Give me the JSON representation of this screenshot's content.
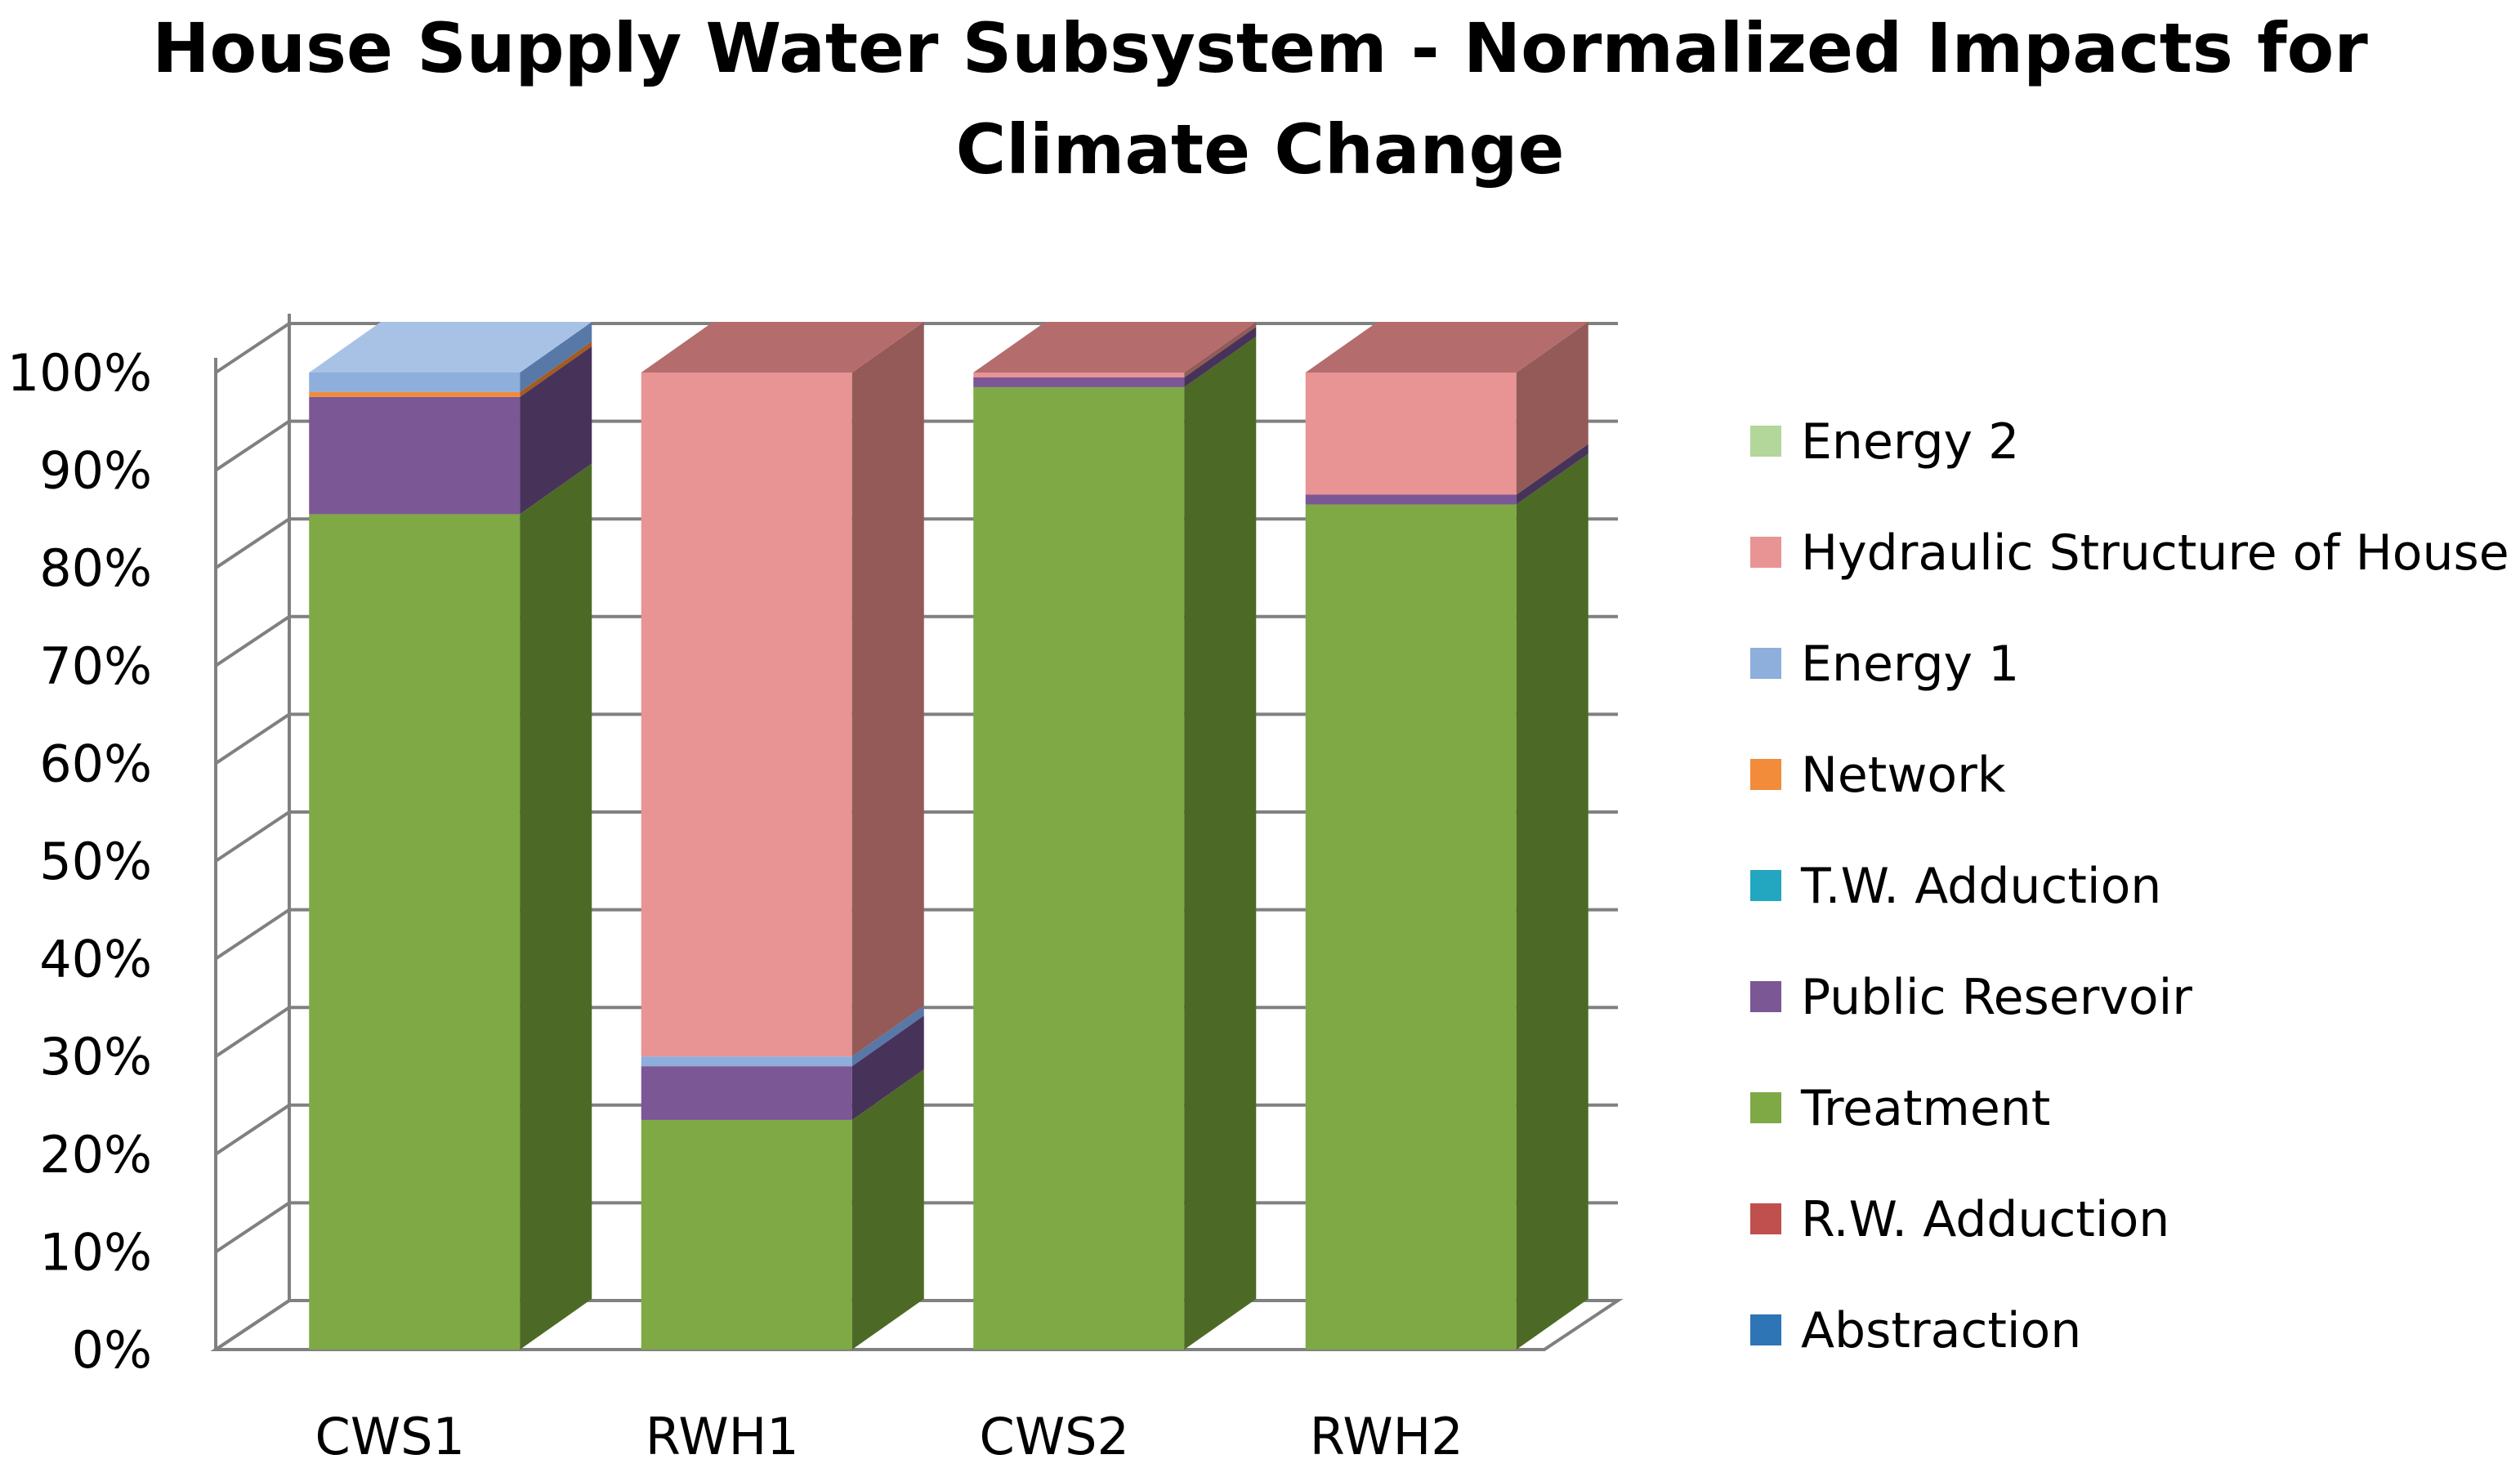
{
  "chart_data": {
    "type": "bar",
    "stacked": true,
    "percent_stacked": true,
    "three_d": true,
    "title": "House Supply Water Subsystem - Normalized Impacts for Climate Change",
    "title_lines": [
      "House Supply Water Subsystem - Normalized Impacts for",
      "Climate Change"
    ],
    "xlabel": "",
    "ylabel": "",
    "ylim": [
      0,
      100
    ],
    "yticks": [
      "0%",
      "10%",
      "20%",
      "30%",
      "40%",
      "50%",
      "60%",
      "70%",
      "80%",
      "90%",
      "100%"
    ],
    "grid": true,
    "legend_position": "right",
    "categories": [
      "CWS1",
      "RWH1",
      "CWS2",
      "RWH2"
    ],
    "series": [
      {
        "name": "Abstraction",
        "color": "#2E75B6",
        "side_color": "#1F4E79",
        "top_color": "#5B9BD5",
        "values": [
          0.0,
          0.0,
          0.0,
          0.0
        ]
      },
      {
        "name": "R.W. Adduction",
        "color": "#C0504D",
        "side_color": "#8C2E2C",
        "top_color": "#D47B79",
        "values": [
          0.0,
          0.0,
          0.0,
          0.0
        ]
      },
      {
        "name": "Treatment",
        "color": "#7EA944",
        "side_color": "#4C6A26",
        "top_color": "#95B46C",
        "values": [
          85.5,
          23.5,
          98.5,
          86.5
        ]
      },
      {
        "name": "Public Reservoir",
        "color": "#7B5795",
        "side_color": "#47335A",
        "top_color": "#947AAA",
        "values": [
          12.0,
          5.5,
          1.0,
          1.0
        ]
      },
      {
        "name": "T.W. Adduction",
        "color": "#23A6C0",
        "side_color": "#15687A",
        "top_color": "#60C0D4",
        "values": [
          0.0,
          0.0,
          0.0,
          0.0
        ]
      },
      {
        "name": "Network",
        "color": "#F28B3A",
        "side_color": "#A65A1E",
        "top_color": "#F5AA70",
        "values": [
          0.5,
          0.0,
          0.0,
          0.0
        ]
      },
      {
        "name": "Energy 1",
        "color": "#8EAEDC",
        "side_color": "#5878A8",
        "top_color": "#A8C2E6",
        "values": [
          2.0,
          1.0,
          0.0,
          0.0
        ]
      },
      {
        "name": "Hydraulic Structure of House",
        "color": "#E89494",
        "side_color": "#935A57",
        "top_color": "#B56C6C",
        "values": [
          0.0,
          70.0,
          0.5,
          12.5
        ]
      },
      {
        "name": "Energy 2",
        "color": "#B3D69B",
        "side_color": "#6E8E58",
        "top_color": "#86A274",
        "values": [
          0.0,
          0.0,
          0.0,
          0.0
        ]
      }
    ]
  }
}
